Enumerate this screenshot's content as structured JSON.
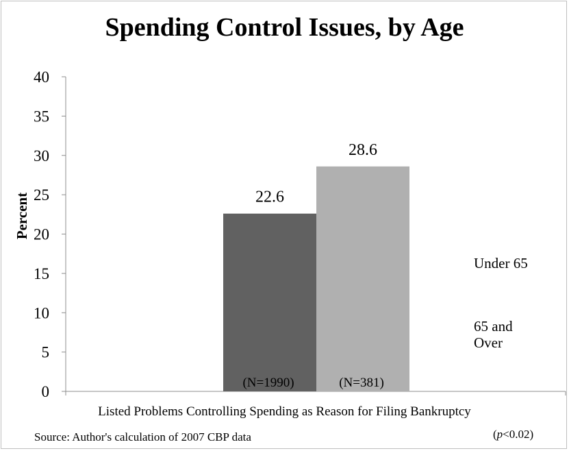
{
  "chart_data": {
    "type": "bar",
    "title": "Spending Control Issues, by Age",
    "xlabel": "Listed Problems Controlling Spending as Reason for Filing Bankruptcy",
    "ylabel": "Percent",
    "ylim": [
      0,
      40
    ],
    "yticks": [
      "0",
      "5",
      "10",
      "15",
      "20",
      "25",
      "30",
      "35",
      "40"
    ],
    "grid": false,
    "legend_position": "right",
    "series": [
      {
        "name": "Under 65",
        "values": [
          22.6
        ],
        "value_label": "22.6",
        "n_label": "(N=1990)",
        "color": "#616161"
      },
      {
        "name": "65 and Over",
        "values": [
          28.6
        ],
        "value_label": "28.6",
        "n_label": "(N=381)",
        "color": "#b0b0b0"
      }
    ]
  },
  "footer": {
    "source": "Source:  Author's calculation of 2007 CBP data",
    "p_prefix": "(",
    "p_var": "p",
    "p_rest": "<0.02)"
  },
  "legend": {
    "under65_label": "Under 65",
    "over65_line1": "65 and",
    "over65_line2": "Over"
  }
}
